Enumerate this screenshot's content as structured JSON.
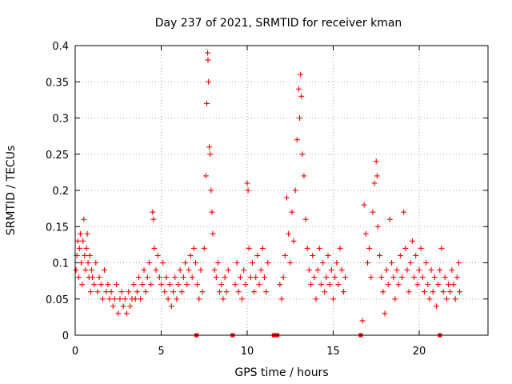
{
  "chart_data": {
    "type": "scatter",
    "title": "Day 237 of 2021, SRMTID for receiver kman",
    "xlabel": "GPS time / hours",
    "ylabel": "SRMTID / TECUs",
    "xlim": [
      0,
      24
    ],
    "ylim": [
      0,
      0.4
    ],
    "x_ticks": [
      0,
      5,
      10,
      15,
      20
    ],
    "x_tick_labels": [
      "0",
      "5",
      "10",
      "15",
      "20"
    ],
    "y_ticks": [
      0,
      0.05,
      0.1,
      0.15,
      0.2,
      0.25,
      0.3,
      0.35,
      0.4
    ],
    "y_tick_labels": [
      "0",
      "0.05",
      "0.1",
      "0.15",
      "0.2",
      "0.25",
      "0.3",
      "0.35",
      "0.4"
    ],
    "grid": true,
    "marker": "+",
    "color": "#ff0000",
    "zero_markers_x": [
      7.05,
      9.15,
      11.55,
      11.65,
      11.75,
      16.6,
      21.2
    ],
    "series": [
      {
        "name": "SRMTID",
        "points": [
          [
            0.05,
            0.09
          ],
          [
            0.1,
            0.11
          ],
          [
            0.15,
            0.13
          ],
          [
            0.2,
            0.08
          ],
          [
            0.25,
            0.12
          ],
          [
            0.3,
            0.14
          ],
          [
            0.35,
            0.1
          ],
          [
            0.4,
            0.07
          ],
          [
            0.45,
            0.13
          ],
          [
            0.5,
            0.16
          ],
          [
            0.55,
            0.11
          ],
          [
            0.6,
            0.09
          ],
          [
            0.65,
            0.12
          ],
          [
            0.7,
            0.14
          ],
          [
            0.75,
            0.1
          ],
          [
            0.8,
            0.08
          ],
          [
            0.85,
            0.11
          ],
          [
            0.9,
            0.06
          ],
          [
            0.95,
            0.09
          ],
          [
            1.0,
            0.08
          ],
          [
            1.1,
            0.07
          ],
          [
            1.2,
            0.1
          ],
          [
            1.3,
            0.06
          ],
          [
            1.4,
            0.08
          ],
          [
            1.5,
            0.07
          ],
          [
            1.6,
            0.05
          ],
          [
            1.7,
            0.09
          ],
          [
            1.8,
            0.06
          ],
          [
            1.9,
            0.07
          ],
          [
            2.0,
            0.05
          ],
          [
            2.1,
            0.06
          ],
          [
            2.2,
            0.04
          ],
          [
            2.3,
            0.05
          ],
          [
            2.4,
            0.07
          ],
          [
            2.5,
            0.03
          ],
          [
            2.6,
            0.05
          ],
          [
            2.7,
            0.06
          ],
          [
            2.8,
            0.04
          ],
          [
            2.9,
            0.05
          ],
          [
            3.0,
            0.03
          ],
          [
            3.1,
            0.06
          ],
          [
            3.2,
            0.04
          ],
          [
            3.3,
            0.05
          ],
          [
            3.4,
            0.07
          ],
          [
            3.5,
            0.05
          ],
          [
            3.6,
            0.06
          ],
          [
            3.7,
            0.08
          ],
          [
            3.8,
            0.05
          ],
          [
            3.9,
            0.07
          ],
          [
            4.0,
            0.09
          ],
          [
            4.1,
            0.06
          ],
          [
            4.2,
            0.08
          ],
          [
            4.3,
            0.1
          ],
          [
            4.4,
            0.07
          ],
          [
            4.5,
            0.17
          ],
          [
            4.55,
            0.16
          ],
          [
            4.6,
            0.12
          ],
          [
            4.7,
            0.09
          ],
          [
            4.8,
            0.11
          ],
          [
            4.9,
            0.08
          ],
          [
            5.0,
            0.07
          ],
          [
            5.1,
            0.1
          ],
          [
            5.2,
            0.06
          ],
          [
            5.3,
            0.08
          ],
          [
            5.4,
            0.05
          ],
          [
            5.5,
            0.07
          ],
          [
            5.6,
            0.04
          ],
          [
            5.7,
            0.06
          ],
          [
            5.8,
            0.08
          ],
          [
            5.9,
            0.05
          ],
          [
            6.0,
            0.07
          ],
          [
            6.1,
            0.09
          ],
          [
            6.2,
            0.06
          ],
          [
            6.3,
            0.08
          ],
          [
            6.4,
            0.1
          ],
          [
            6.5,
            0.07
          ],
          [
            6.6,
            0.09
          ],
          [
            6.7,
            0.11
          ],
          [
            6.8,
            0.08
          ],
          [
            6.9,
            0.12
          ],
          [
            7.0,
            0.1
          ],
          [
            7.1,
            0.07
          ],
          [
            7.2,
            0.05
          ],
          [
            7.3,
            0.09
          ],
          [
            7.4,
            0.06
          ],
          [
            7.5,
            0.12
          ],
          [
            7.6,
            0.22
          ],
          [
            7.65,
            0.32
          ],
          [
            7.7,
            0.39
          ],
          [
            7.72,
            0.38
          ],
          [
            7.75,
            0.35
          ],
          [
            7.8,
            0.26
          ],
          [
            7.85,
            0.25
          ],
          [
            7.9,
            0.2
          ],
          [
            7.95,
            0.17
          ],
          [
            8.0,
            0.14
          ],
          [
            8.1,
            0.09
          ],
          [
            8.2,
            0.08
          ],
          [
            8.3,
            0.1
          ],
          [
            8.4,
            0.06
          ],
          [
            8.5,
            0.07
          ],
          [
            8.6,
            0.05
          ],
          [
            8.7,
            0.08
          ],
          [
            8.8,
            0.06
          ],
          [
            8.9,
            0.09
          ],
          [
            9.3,
            0.07
          ],
          [
            9.4,
            0.1
          ],
          [
            9.5,
            0.06
          ],
          [
            9.6,
            0.08
          ],
          [
            9.7,
            0.05
          ],
          [
            9.8,
            0.09
          ],
          [
            9.9,
            0.07
          ],
          [
            10.0,
            0.21
          ],
          [
            10.05,
            0.2
          ],
          [
            10.1,
            0.12
          ],
          [
            10.2,
            0.08
          ],
          [
            10.3,
            0.1
          ],
          [
            10.4,
            0.06
          ],
          [
            10.5,
            0.08
          ],
          [
            10.6,
            0.11
          ],
          [
            10.7,
            0.07
          ],
          [
            10.8,
            0.09
          ],
          [
            10.9,
            0.12
          ],
          [
            11.0,
            0.08
          ],
          [
            11.1,
            0.06
          ],
          [
            11.2,
            0.1
          ],
          [
            11.9,
            0.07
          ],
          [
            12.0,
            0.05
          ],
          [
            12.1,
            0.08
          ],
          [
            12.2,
            0.11
          ],
          [
            12.3,
            0.19
          ],
          [
            12.4,
            0.14
          ],
          [
            12.5,
            0.1
          ],
          [
            12.6,
            0.17
          ],
          [
            12.7,
            0.13
          ],
          [
            12.8,
            0.2
          ],
          [
            12.9,
            0.27
          ],
          [
            13.0,
            0.34
          ],
          [
            13.05,
            0.3
          ],
          [
            13.1,
            0.36
          ],
          [
            13.15,
            0.33
          ],
          [
            13.2,
            0.25
          ],
          [
            13.3,
            0.22
          ],
          [
            13.4,
            0.16
          ],
          [
            13.5,
            0.12
          ],
          [
            13.6,
            0.09
          ],
          [
            13.7,
            0.07
          ],
          [
            13.8,
            0.11
          ],
          [
            13.9,
            0.08
          ],
          [
            14.0,
            0.05
          ],
          [
            14.1,
            0.09
          ],
          [
            14.2,
            0.12
          ],
          [
            14.3,
            0.07
          ],
          [
            14.4,
            0.1
          ],
          [
            14.5,
            0.06
          ],
          [
            14.6,
            0.08
          ],
          [
            14.7,
            0.11
          ],
          [
            14.8,
            0.07
          ],
          [
            14.9,
            0.09
          ],
          [
            15.0,
            0.05
          ],
          [
            15.1,
            0.08
          ],
          [
            15.2,
            0.1
          ],
          [
            15.3,
            0.07
          ],
          [
            15.4,
            0.12
          ],
          [
            15.5,
            0.09
          ],
          [
            15.6,
            0.06
          ],
          [
            15.7,
            0.08
          ],
          [
            16.7,
            0.02
          ],
          [
            16.8,
            0.18
          ],
          [
            16.9,
            0.14
          ],
          [
            17.0,
            0.1
          ],
          [
            17.1,
            0.12
          ],
          [
            17.2,
            0.08
          ],
          [
            17.3,
            0.17
          ],
          [
            17.4,
            0.21
          ],
          [
            17.5,
            0.24
          ],
          [
            17.55,
            0.22
          ],
          [
            17.6,
            0.15
          ],
          [
            17.7,
            0.11
          ],
          [
            17.8,
            0.08
          ],
          [
            17.9,
            0.06
          ],
          [
            18.0,
            0.03
          ],
          [
            18.1,
            0.09
          ],
          [
            18.2,
            0.07
          ],
          [
            18.3,
            0.16
          ],
          [
            18.4,
            0.1
          ],
          [
            18.5,
            0.08
          ],
          [
            18.6,
            0.05
          ],
          [
            18.7,
            0.09
          ],
          [
            18.8,
            0.07
          ],
          [
            18.9,
            0.11
          ],
          [
            19.0,
            0.08
          ],
          [
            19.1,
            0.17
          ],
          [
            19.2,
            0.12
          ],
          [
            19.3,
            0.09
          ],
          [
            19.4,
            0.06
          ],
          [
            19.5,
            0.1
          ],
          [
            19.6,
            0.13
          ],
          [
            19.7,
            0.08
          ],
          [
            19.8,
            0.11
          ],
          [
            19.9,
            0.07
          ],
          [
            20.0,
            0.09
          ],
          [
            20.1,
            0.12
          ],
          [
            20.2,
            0.08
          ],
          [
            20.3,
            0.06
          ],
          [
            20.4,
            0.1
          ],
          [
            20.5,
            0.07
          ],
          [
            20.6,
            0.05
          ],
          [
            20.7,
            0.09
          ],
          [
            20.8,
            0.06
          ],
          [
            20.9,
            0.08
          ],
          [
            21.0,
            0.04
          ],
          [
            21.1,
            0.07
          ],
          [
            21.2,
            0.09
          ],
          [
            21.3,
            0.12
          ],
          [
            21.4,
            0.06
          ],
          [
            21.5,
            0.08
          ],
          [
            21.6,
            0.05
          ],
          [
            21.7,
            0.07
          ],
          [
            21.8,
            0.06
          ],
          [
            21.9,
            0.09
          ],
          [
            22.0,
            0.07
          ],
          [
            22.1,
            0.05
          ],
          [
            22.2,
            0.08
          ],
          [
            22.3,
            0.1
          ],
          [
            22.35,
            0.06
          ]
        ]
      }
    ]
  }
}
